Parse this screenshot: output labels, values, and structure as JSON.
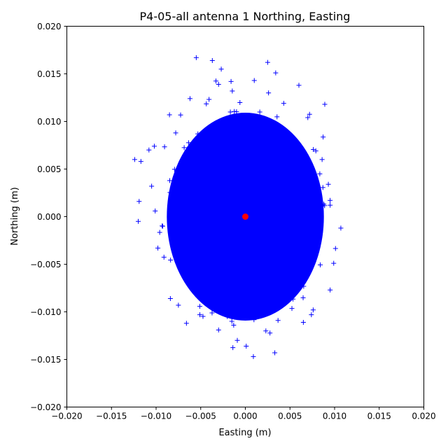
{
  "chart_data": {
    "type": "scatter",
    "title": "P4-05-all antenna 1 Northing, Easting",
    "xlabel": "Easting (m)",
    "ylabel": "Northing (m)",
    "xlim": [
      -0.02,
      0.02
    ],
    "ylim": [
      -0.02,
      0.02
    ],
    "xticks": [
      -0.02,
      -0.015,
      -0.01,
      -0.005,
      0.0,
      0.005,
      0.01,
      0.015,
      0.02
    ],
    "yticks": [
      -0.02,
      -0.015,
      -0.01,
      -0.005,
      0.0,
      0.005,
      0.01,
      0.015,
      0.02
    ],
    "xtick_labels": [
      "−0.020",
      "−0.015",
      "−0.010",
      "−0.005",
      "0.000",
      "0.005",
      "0.010",
      "0.015",
      "0.020"
    ],
    "ytick_labels": [
      "−0.020",
      "−0.015",
      "−0.010",
      "−0.005",
      "0.000",
      "0.005",
      "0.010",
      "0.015",
      "0.020"
    ],
    "grid": false,
    "series": [
      {
        "marker": "plus",
        "color": "#0000ff",
        "distribution": {
          "approx_center": [
            0.0,
            0.0
          ],
          "approx_std": [
            0.0032,
            0.0042
          ]
        },
        "points": [
          [
            -0.0055,
            0.0167
          ],
          [
            -0.0037,
            0.0164
          ],
          [
            0.0025,
            0.0162
          ],
          [
            0.0034,
            0.0151
          ],
          [
            -0.0027,
            0.0155
          ],
          [
            -0.0016,
            0.0142
          ],
          [
            0.001,
            0.0143
          ],
          [
            0.006,
            0.0138
          ],
          [
            0.0089,
            0.0118
          ],
          [
            -0.0085,
            0.0107
          ],
          [
            -0.0124,
            0.006
          ],
          [
            -0.0117,
            0.0058
          ],
          [
            -0.0108,
            0.007
          ],
          [
            -0.0102,
            0.0074
          ],
          [
            -0.0105,
            0.0032
          ],
          [
            -0.0119,
            0.0016
          ],
          [
            -0.012,
            -0.0005
          ],
          [
            -0.0098,
            -0.0033
          ],
          [
            -0.0101,
            0.0006
          ],
          [
            -0.0084,
            -0.0086
          ],
          [
            -0.0075,
            -0.0093
          ],
          [
            -0.0066,
            -0.0112
          ],
          [
            -0.0051,
            -0.0103
          ],
          [
            -0.003,
            -0.0119
          ],
          [
            -0.0009,
            -0.013
          ],
          [
            0.0001,
            -0.0136
          ],
          [
            0.0009,
            -0.0147
          ],
          [
            0.0033,
            -0.0143
          ],
          [
            0.0023,
            -0.012
          ],
          [
            0.0065,
            -0.0111
          ],
          [
            0.0074,
            -0.0103
          ],
          [
            0.0076,
            -0.0098
          ],
          [
            0.0095,
            -0.0077
          ],
          [
            0.0099,
            -0.0049
          ],
          [
            0.0107,
            -0.0012
          ],
          [
            0.0095,
            0.0012
          ],
          [
            0.0093,
            0.0034
          ],
          [
            0.0086,
            0.006
          ],
          [
            0.0079,
            0.0069
          ],
          [
            0.007,
            0.0104
          ],
          [
            0.0043,
            0.0119
          ],
          [
            0.0026,
            0.013
          ],
          [
            -0.003,
            0.0139
          ],
          [
            -0.0062,
            0.0124
          ],
          [
            -0.0078,
            0.0088
          ]
        ]
      },
      {
        "marker": "circle",
        "color": "#ff0000",
        "points": [
          [
            0.0,
            0.0
          ]
        ]
      }
    ]
  }
}
